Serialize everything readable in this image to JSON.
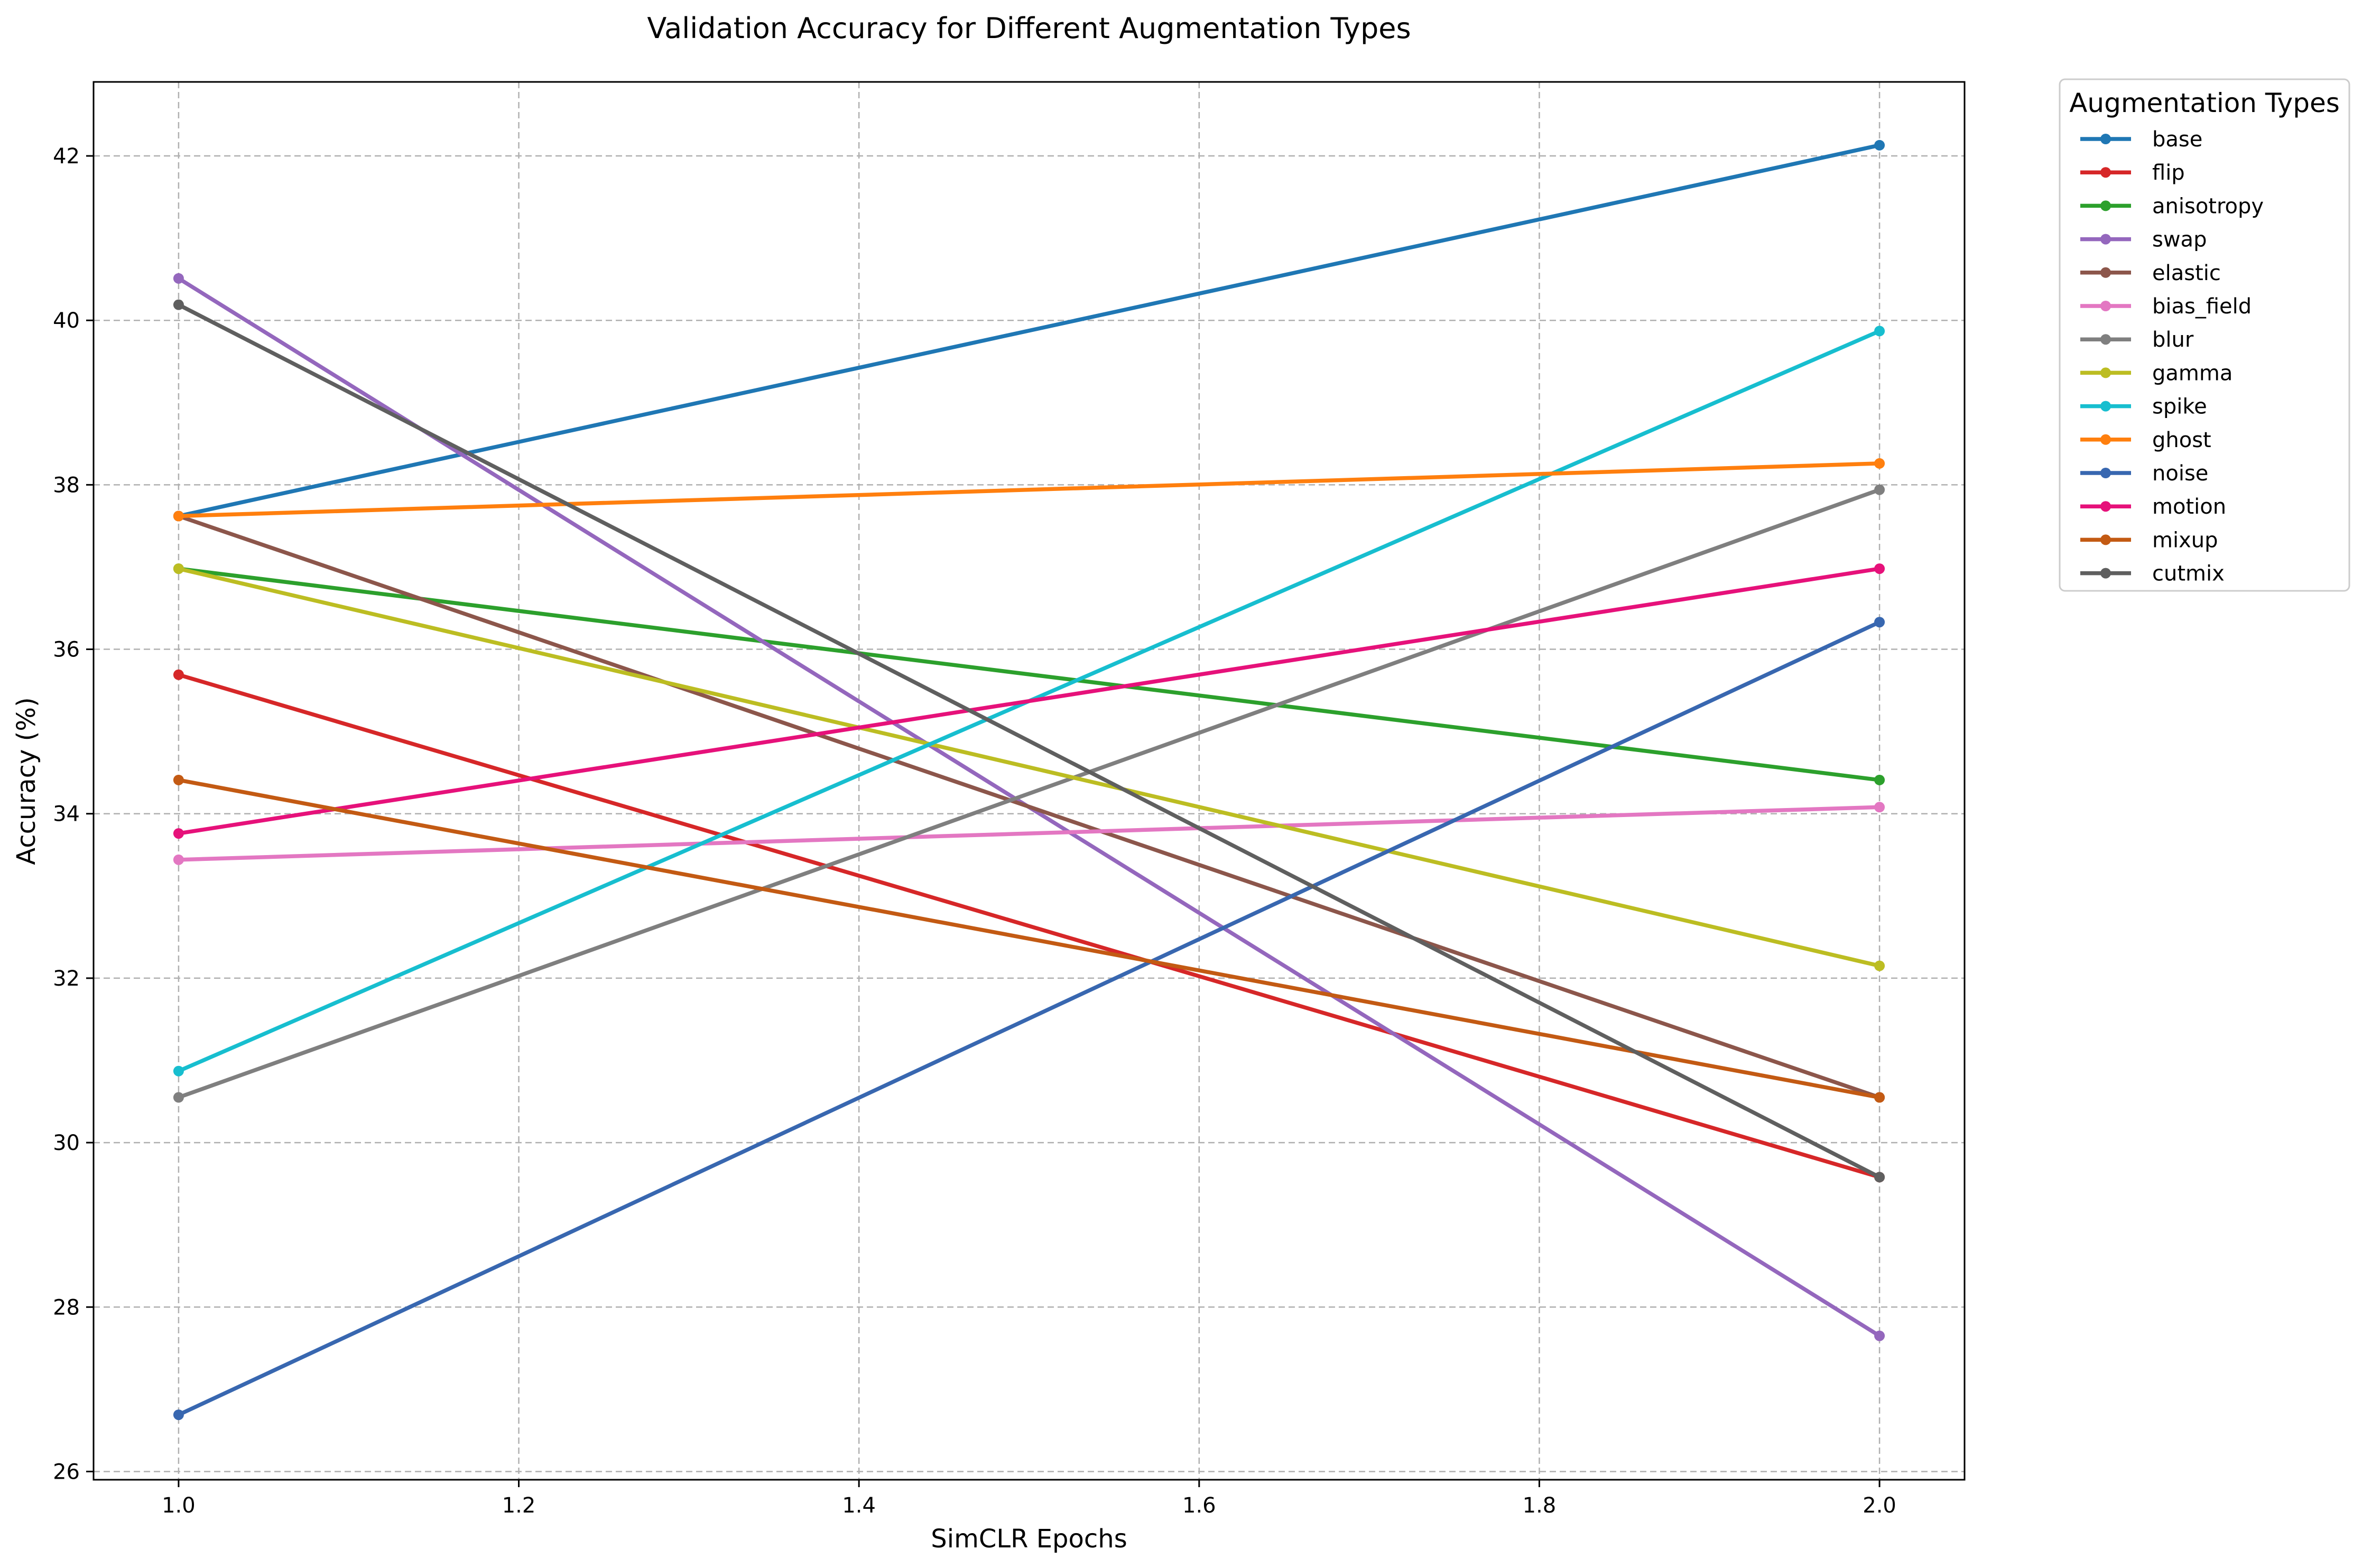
{
  "chart_data": {
    "type": "line",
    "title": "Validation Accuracy for Different Augmentation Types",
    "xlabel": "SimCLR Epochs",
    "ylabel": "Accuracy (%)",
    "xlim": [
      0.95,
      2.05
    ],
    "ylim": [
      25.9,
      42.9
    ],
    "x_ticks": [
      "1.0",
      "1.2",
      "1.4",
      "1.6",
      "1.8",
      "2.0"
    ],
    "y_ticks": [
      "26",
      "28",
      "30",
      "32",
      "34",
      "36",
      "38",
      "40",
      "42"
    ],
    "grid": true,
    "legend_title": "Augmentation Types",
    "legend_position": "outside-top-right",
    "x": [
      1.0,
      2.0
    ],
    "series": [
      {
        "name": "base",
        "color": "#1f77b4",
        "values": [
          37.62,
          42.13
        ]
      },
      {
        "name": "flip",
        "color": "#d62728",
        "values": [
          35.69,
          29.58
        ]
      },
      {
        "name": "anisotropy",
        "color": "#2ca02c",
        "values": [
          36.98,
          34.41
        ]
      },
      {
        "name": "swap",
        "color": "#9467bd",
        "values": [
          40.51,
          27.65
        ]
      },
      {
        "name": "elastic",
        "color": "#8c564b",
        "values": [
          37.62,
          30.55
        ]
      },
      {
        "name": "bias_field",
        "color": "#e377c2",
        "values": [
          33.44,
          34.08
        ]
      },
      {
        "name": "blur",
        "color": "#7f7f7f",
        "values": [
          30.55,
          37.94
        ]
      },
      {
        "name": "gamma",
        "color": "#bcbd22",
        "values": [
          36.98,
          32.15
        ]
      },
      {
        "name": "spike",
        "color": "#17becf",
        "values": [
          30.87,
          39.87
        ]
      },
      {
        "name": "ghost",
        "color": "#ff7f0e",
        "values": [
          37.62,
          38.26
        ]
      },
      {
        "name": "noise",
        "color": "#3867b0",
        "values": [
          26.69,
          36.33
        ]
      },
      {
        "name": "motion",
        "color": "#e6117a",
        "values": [
          33.76,
          36.98
        ]
      },
      {
        "name": "mixup",
        "color": "#c35a13",
        "values": [
          34.41,
          30.55
        ]
      },
      {
        "name": "cutmix",
        "color": "#5f5f5f",
        "values": [
          40.19,
          29.58
        ]
      }
    ]
  }
}
